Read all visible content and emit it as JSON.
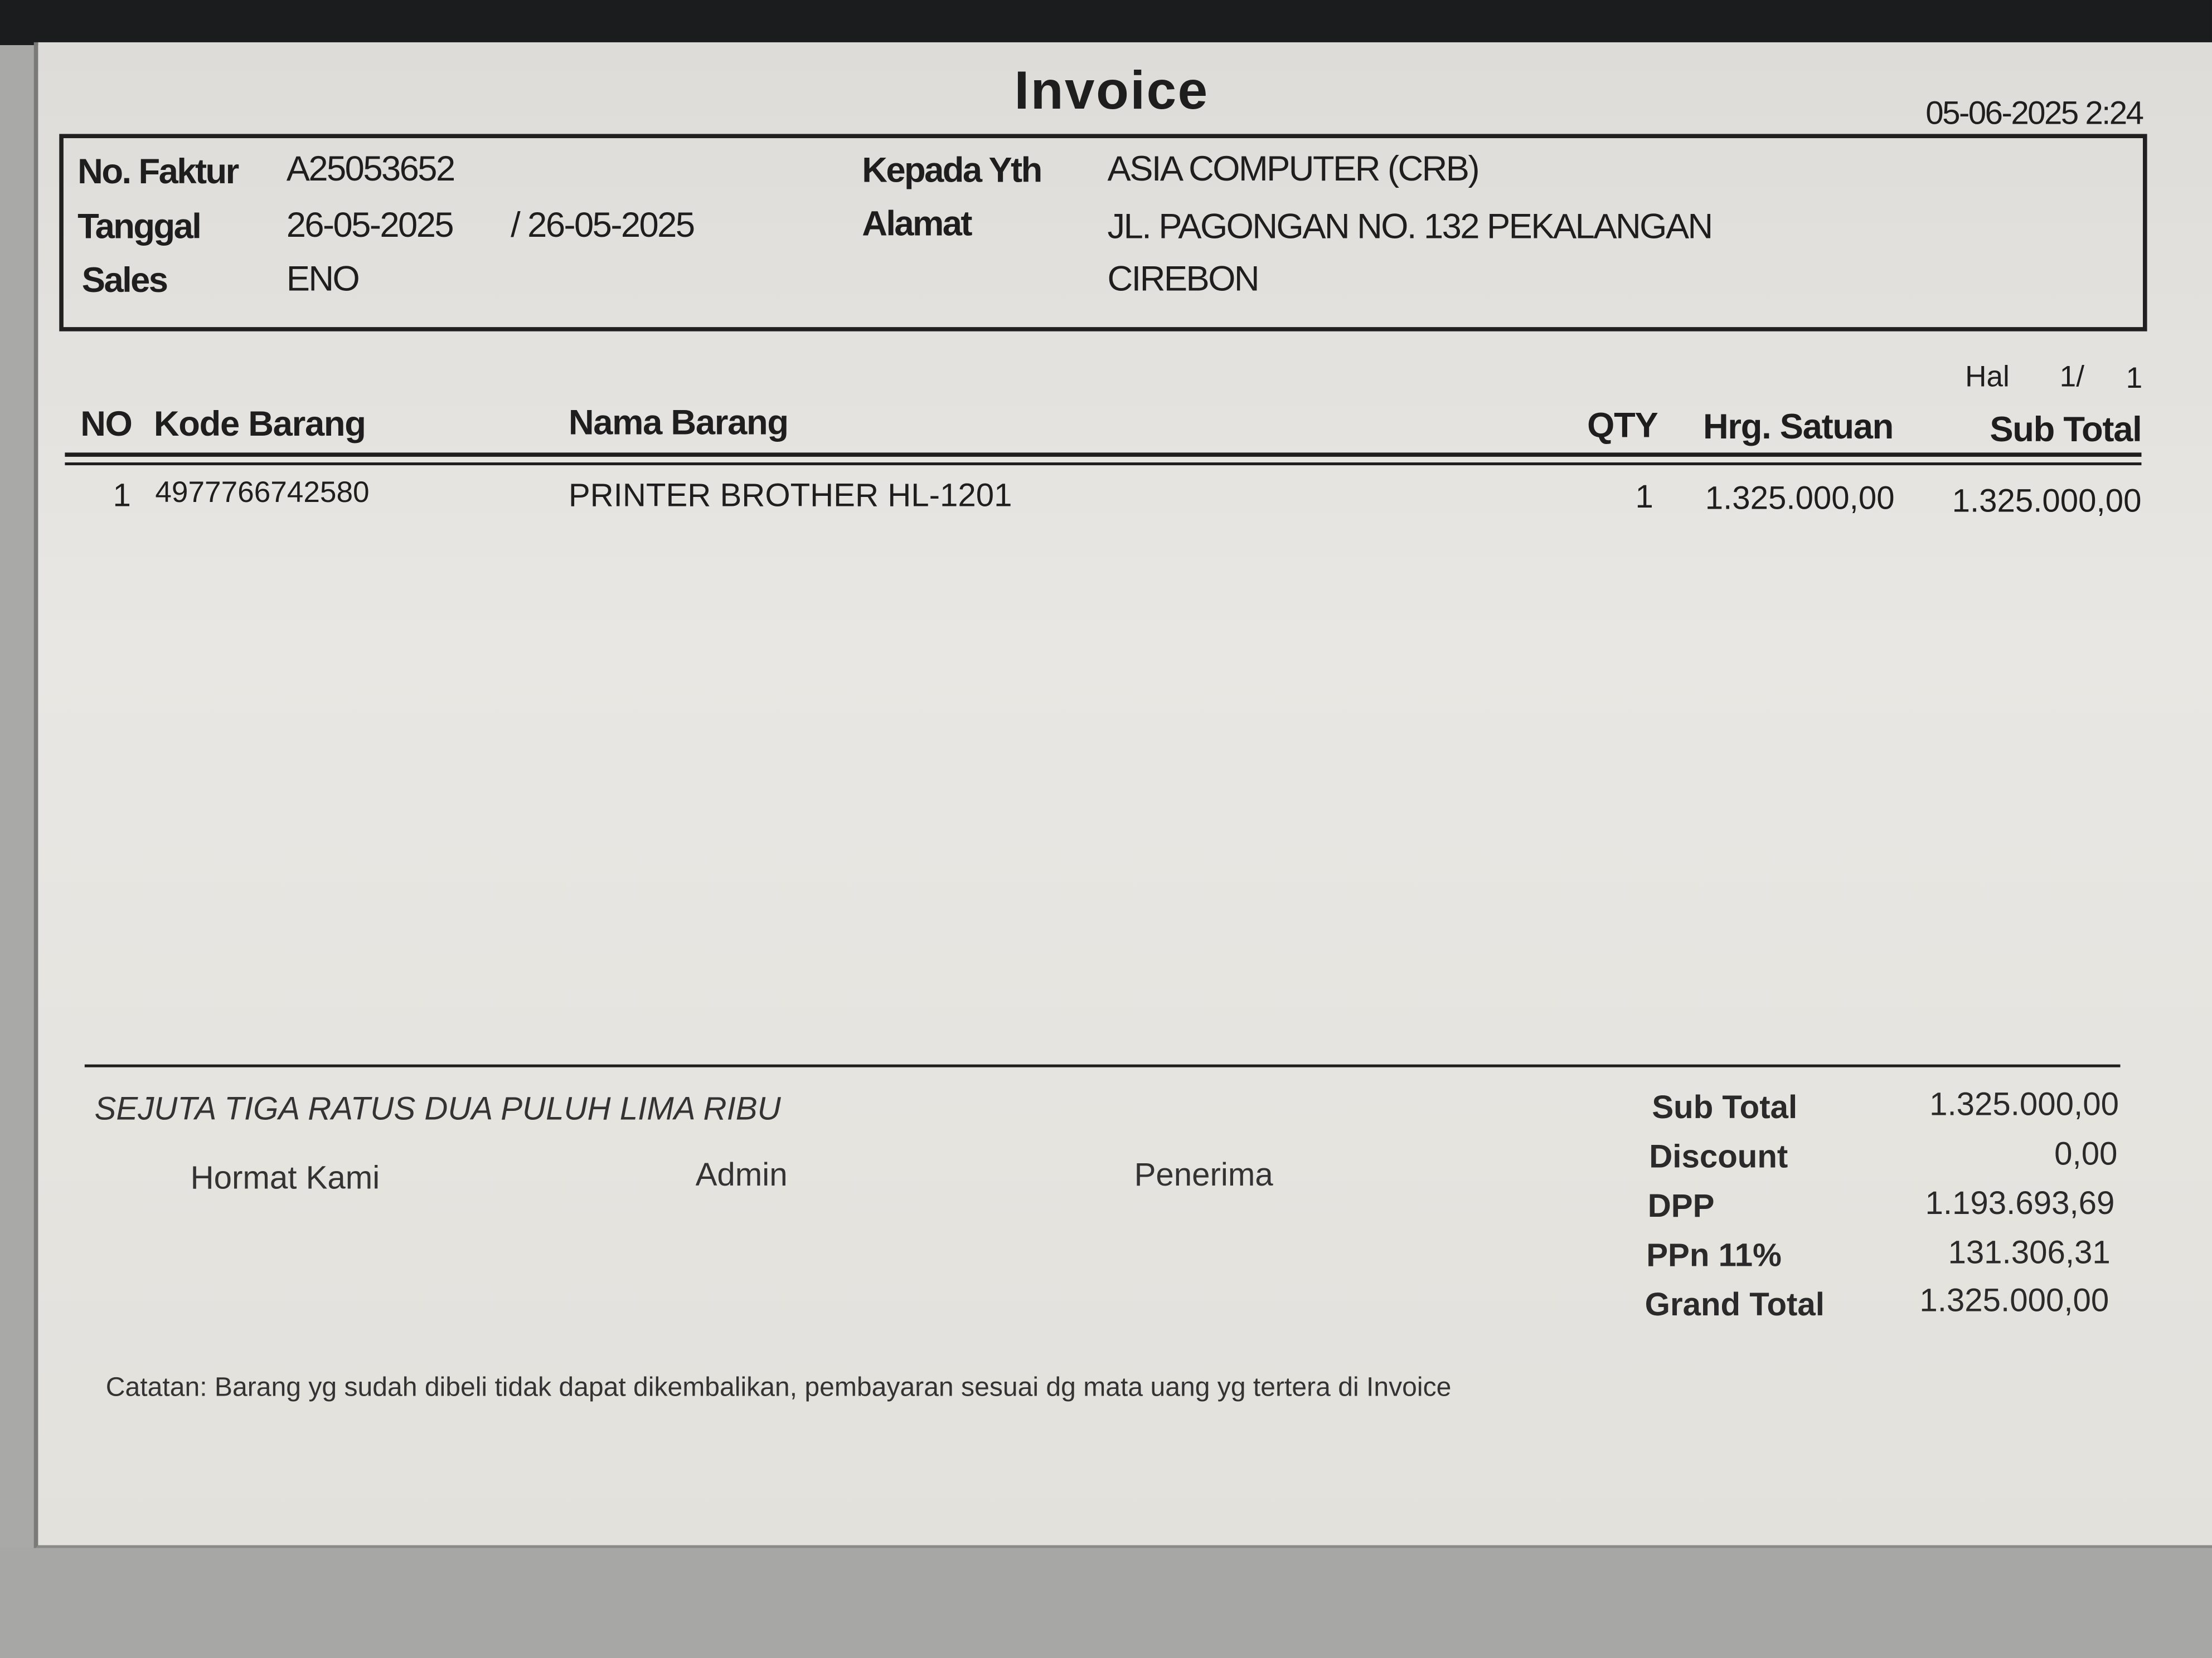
{
  "title": "Invoice",
  "printed_at": "05-06-2025 2:24",
  "header": {
    "no_faktur_label": "No. Faktur",
    "no_faktur": "A25053652",
    "tanggal_label": "Tanggal",
    "tanggal": "26-05-2025",
    "tanggal2": "/ 26-05-2025",
    "sales_label": "Sales",
    "sales": "ENO",
    "kepada_label": "Kepada Yth",
    "kepada": "ASIA COMPUTER (CRB)",
    "alamat_label": "Alamat",
    "alamat1": "JL. PAGONGAN NO. 132 PEKALANGAN",
    "alamat2": "CIREBON"
  },
  "page": {
    "label": "Hal",
    "current": "1/",
    "total": "1"
  },
  "table": {
    "columns": [
      "NO",
      "Kode Barang",
      "Nama Barang",
      "QTY",
      "Hrg. Satuan",
      "Sub Total"
    ],
    "rows": [
      [
        "1",
        "4977766742580",
        "PRINTER BROTHER HL-1201",
        "1",
        "1.325.000,00",
        "1.325.000,00"
      ]
    ]
  },
  "terbilang": "SEJUTA TIGA RATUS DUA PULUH LIMA RIBU",
  "signatures": [
    "Hormat Kami",
    "Admin",
    "Penerima"
  ],
  "totals": [
    {
      "label": "Sub Total",
      "value": "1.325.000,00"
    },
    {
      "label": "Discount",
      "value": "0,00"
    },
    {
      "label": "DPP",
      "value": "1.193.693,69"
    },
    {
      "label": "PPn 11%",
      "value": "131.306,31"
    },
    {
      "label": "Grand Total",
      "value": "1.325.000,00"
    }
  ],
  "note": "Catatan: Barang yg sudah dibeli tidak dapat dikembalikan, pembayaran sesuai dg mata uang yg tertera di Invoice"
}
